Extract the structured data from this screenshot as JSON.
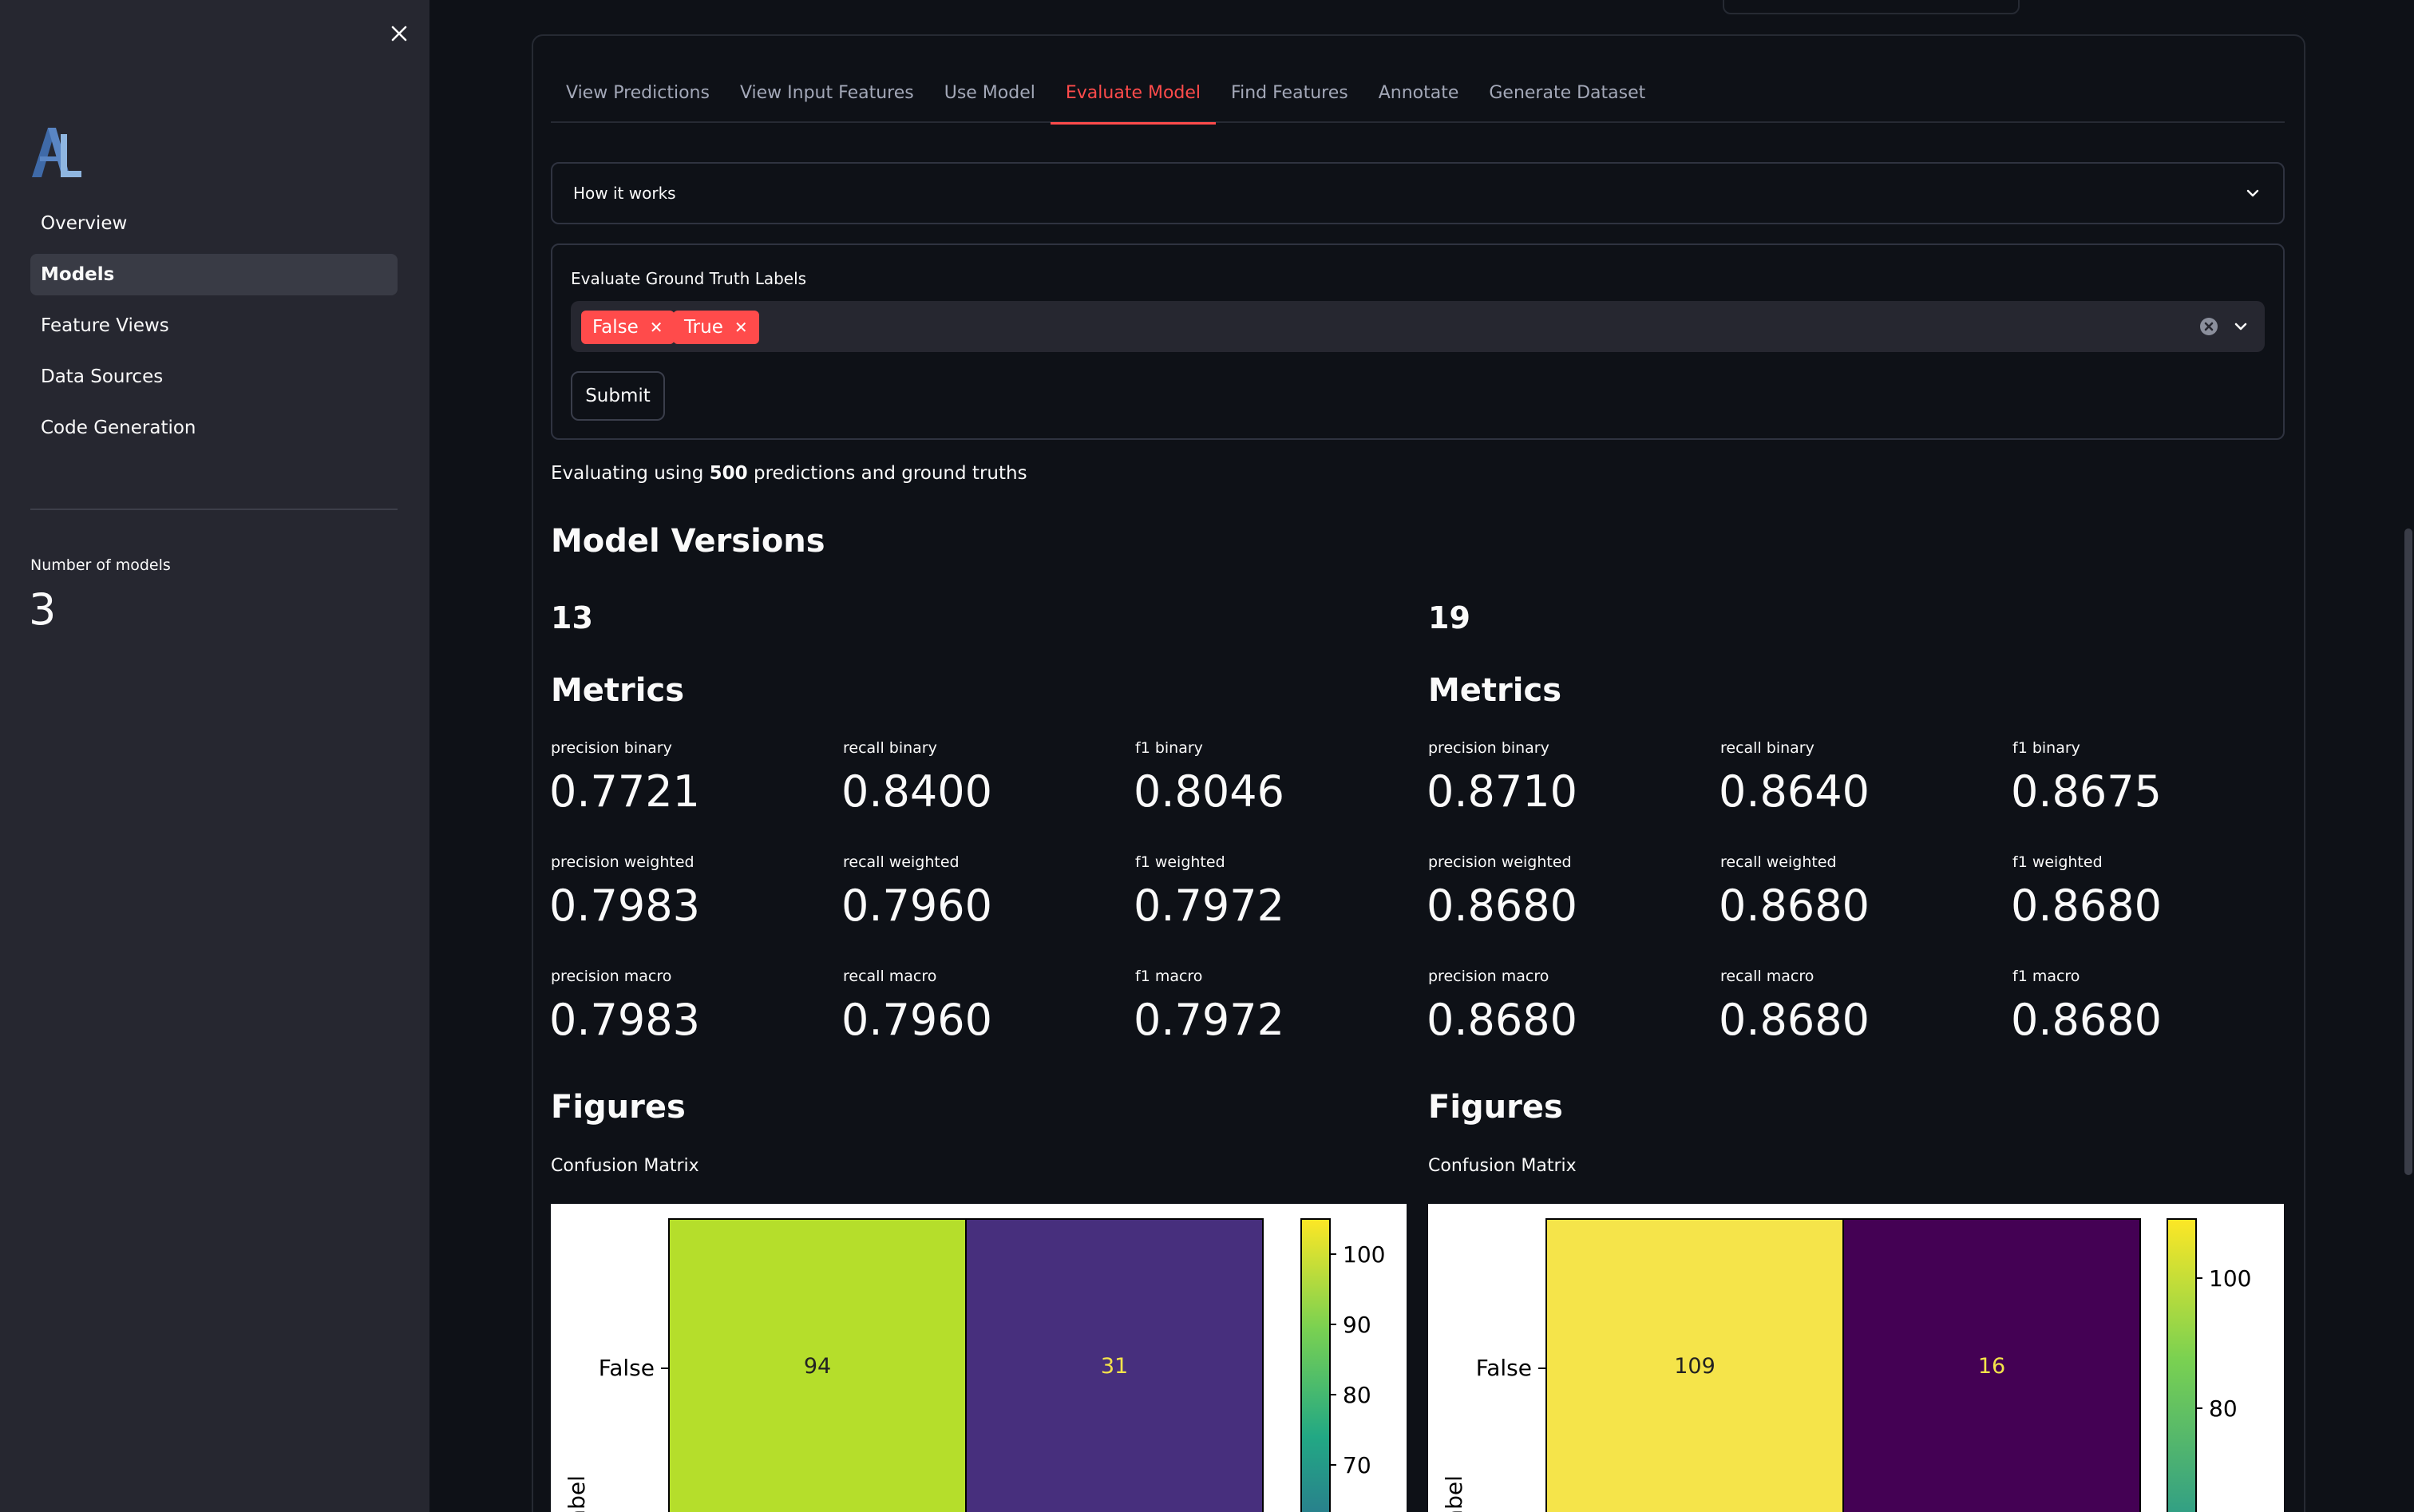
{
  "sidebar": {
    "nav_items": [
      {
        "label": "Overview",
        "active": false
      },
      {
        "label": "Models",
        "active": true
      },
      {
        "label": "Feature Views",
        "active": false
      },
      {
        "label": "Data Sources",
        "active": false
      },
      {
        "label": "Code Generation",
        "active": false
      }
    ],
    "metric_label": "Number of models",
    "metric_value": "3",
    "icons": {
      "close": "close-icon",
      "logo": "app-logo"
    }
  },
  "tabs": [
    {
      "label": "View Predictions",
      "active": false
    },
    {
      "label": "View Input Features",
      "active": false
    },
    {
      "label": "Use Model",
      "active": false
    },
    {
      "label": "Evaluate Model",
      "active": true
    },
    {
      "label": "Find Features",
      "active": false
    },
    {
      "label": "Annotate",
      "active": false
    },
    {
      "label": "Generate Dataset",
      "active": false
    }
  ],
  "expander": {
    "label": "How it works"
  },
  "form": {
    "label": "Evaluate Ground Truth Labels",
    "selected": [
      "False",
      "True"
    ],
    "submit_label": "Submit"
  },
  "evaluation": {
    "prefix": "Evaluating using ",
    "count": "500",
    "suffix": " predictions and ground truths"
  },
  "section_title": "Model Versions",
  "versions": [
    {
      "version": "13",
      "metrics_title": "Metrics",
      "metrics": [
        {
          "label": "precision binary",
          "value": "0.7721"
        },
        {
          "label": "recall binary",
          "value": "0.8400"
        },
        {
          "label": "f1 binary",
          "value": "0.8046"
        },
        {
          "label": "precision weighted",
          "value": "0.7983"
        },
        {
          "label": "recall weighted",
          "value": "0.7960"
        },
        {
          "label": "f1 weighted",
          "value": "0.7972"
        },
        {
          "label": "precision macro",
          "value": "0.7983"
        },
        {
          "label": "recall macro",
          "value": "0.7960"
        },
        {
          "label": "f1 macro",
          "value": "0.7972"
        }
      ],
      "figures_title": "Figures",
      "confusion_title": "Confusion Matrix",
      "confusion": {
        "row_label": "False",
        "axis_label": "abel",
        "cells": [
          {
            "value": "94",
            "color": "#b5de2b",
            "text_color": "#222222"
          },
          {
            "value": "31",
            "color": "#472f7d",
            "text_color": "#f5e44a"
          }
        ],
        "colorbar_ticks": [
          "100",
          "90",
          "80",
          "70"
        ]
      }
    },
    {
      "version": "19",
      "metrics_title": "Metrics",
      "metrics": [
        {
          "label": "precision binary",
          "value": "0.8710"
        },
        {
          "label": "recall binary",
          "value": "0.8640"
        },
        {
          "label": "f1 binary",
          "value": "0.8675"
        },
        {
          "label": "precision weighted",
          "value": "0.8680"
        },
        {
          "label": "recall weighted",
          "value": "0.8680"
        },
        {
          "label": "f1 weighted",
          "value": "0.8680"
        },
        {
          "label": "precision macro",
          "value": "0.8680"
        },
        {
          "label": "recall macro",
          "value": "0.8680"
        },
        {
          "label": "f1 macro",
          "value": "0.8680"
        }
      ],
      "figures_title": "Figures",
      "confusion_title": "Confusion Matrix",
      "confusion": {
        "row_label": "False",
        "axis_label": "abel",
        "cells": [
          {
            "value": "109",
            "color": "#f5e44a",
            "text_color": "#222222"
          },
          {
            "value": "16",
            "color": "#440154",
            "text_color": "#f5e44a"
          }
        ],
        "colorbar_ticks": [
          "100",
          "80"
        ]
      }
    }
  ],
  "colors": {
    "accent": "#ff4b4b",
    "background": "#0e1117",
    "sidebar": "#262730"
  }
}
